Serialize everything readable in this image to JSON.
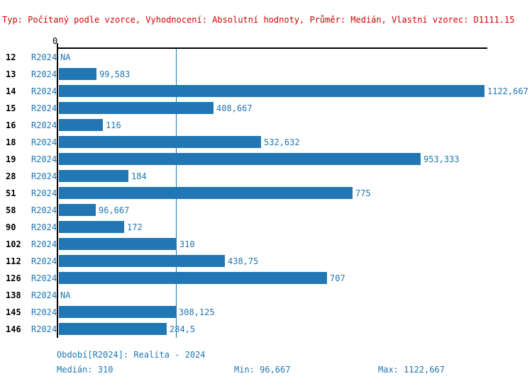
{
  "header": {
    "text": "Typ: Počítaný podle vzorce, Vyhodnocení: Absolutní hodnoty, Průměr: Medián, Vlastní vzorec: D1111.15"
  },
  "chart_data": {
    "type": "bar",
    "orientation": "horizontal",
    "axis_zero_label": "0",
    "xlim": [
      0,
      1122.667
    ],
    "grid": false,
    "median_value": 310,
    "rows": [
      {
        "id": "12",
        "period": "R2024",
        "label": "NA",
        "value": null
      },
      {
        "id": "13",
        "period": "R2024",
        "label": "99,583",
        "value": 99.583
      },
      {
        "id": "14",
        "period": "R2024",
        "label": "1122,667",
        "value": 1122.667
      },
      {
        "id": "15",
        "period": "R2024",
        "label": "408,667",
        "value": 408.667
      },
      {
        "id": "16",
        "period": "R2024",
        "label": "116",
        "value": 116
      },
      {
        "id": "18",
        "period": "R2024",
        "label": "532,632",
        "value": 532.632
      },
      {
        "id": "19",
        "period": "R2024",
        "label": "953,333",
        "value": 953.333
      },
      {
        "id": "28",
        "period": "R2024",
        "label": "184",
        "value": 184
      },
      {
        "id": "51",
        "period": "R2024",
        "label": "775",
        "value": 775
      },
      {
        "id": "58",
        "period": "R2024",
        "label": "96,667",
        "value": 96.667
      },
      {
        "id": "90",
        "period": "R2024",
        "label": "172",
        "value": 172
      },
      {
        "id": "102",
        "period": "R2024",
        "label": "310",
        "value": 310
      },
      {
        "id": "112",
        "period": "R2024",
        "label": "438,75",
        "value": 438.75
      },
      {
        "id": "126",
        "period": "R2024",
        "label": "707",
        "value": 707
      },
      {
        "id": "138",
        "period": "R2024",
        "label": "NA",
        "value": null
      },
      {
        "id": "145",
        "period": "R2024",
        "label": "308,125",
        "value": 308.125
      },
      {
        "id": "146",
        "period": "R2024",
        "label": "284,5",
        "value": 284.5
      }
    ]
  },
  "footer": {
    "period_line": "Období[R2024]: Realita - 2024",
    "median_label": "Medián: 310",
    "min_label": "Min: 96,667",
    "max_label": "Max: 1122,667"
  },
  "colors": {
    "bar": "#2077b4",
    "text_blue": "#2077b4",
    "header_red": "#d40000",
    "axis": "#000000"
  }
}
